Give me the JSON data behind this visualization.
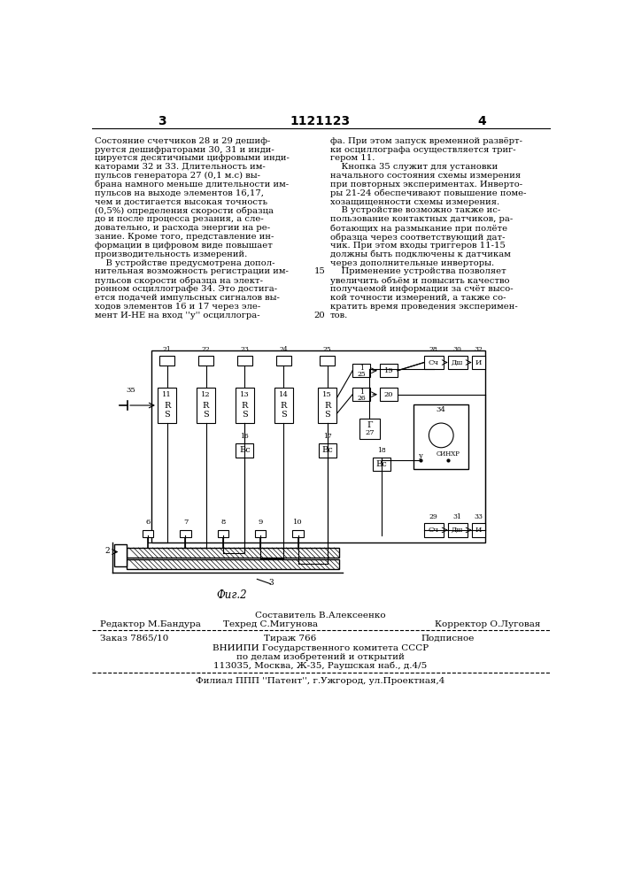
{
  "page_number_left": "3",
  "patent_number": "1121123",
  "page_number_right": "4",
  "left_col_lines": [
    "Состояние счетчиков 28 и 29 дешиф-",
    "руется дешифраторами 30, 31 и инди-",
    "цируется десятичными цифровыми инди-",
    "каторами 32 и 33. Длительность им-",
    "пульсов генератора 27 (0,1 м.с) вы-",
    "брана намного меньше длительности им-",
    "пульсов на выходе элементов 16,17,",
    "чем и достигается высокая точность",
    "(0,5%) определения скорости образца",
    "до и после процесса резания, а сле-",
    "довательно, и расхода энергии на ре-",
    "зание. Кроме того, представление ин-",
    "формации в цифровом виде повышает",
    "производительность измерений.",
    "    В устройстве предусмотрена допол-",
    "нительная возможность регистрации им-",
    "пульсов скорости образца на элект-",
    "ронном осциллографе 34. Это достига-",
    "ется подачей импульсных сигналов вы-",
    "ходов элементов 16 и 17 через эле-",
    "мент И-НЕ на вход ''у'' осциллогра-"
  ],
  "right_col_lines": [
    "фа. При этом запуск временной развёрт-",
    "ки осциллографа осуществляется триг-",
    "гером 11.",
    "    Кнопка 35 служит для установки",
    "начального состояния схемы измерения",
    "при повторных экспериментах. Инверто-",
    "ры 21-24 обеспечивают повышение поме-",
    "хозащищенности схемы измерения.",
    "    В устройстве возможно также ис-",
    "пользование контактных датчиков, ра-",
    "ботающих на размыкание при полёте",
    "образца через соответствующий дат-",
    "чик. При этом входы триггеров 11-15",
    "должны быть подключены к датчикам",
    "через дополнительные инверторы.",
    "    Применение устройства позволяет",
    "увеличить объём и повысить качество",
    "получаемой информации за счёт высо-",
    "кой точности измерений, а также со-",
    "кратить время проведения эксперимен-",
    "тов."
  ],
  "line_margin_numbers": {
    "15": 15,
    "20": 20
  },
  "fig_label": "Фиг.2",
  "footer_sestavitel": "Составитель В.Алексеенко",
  "footer_redaktor": "Редактор М.Бандура",
  "footer_tehred": "Техред С.Мигунова",
  "footer_korrektor": "Корректор О.Луговая",
  "footer_order": "Заказ 7865/10",
  "footer_tirazh": "Тираж 766",
  "footer_podpisnoe": "Подписное",
  "footer_vniiipi": "ВНИИПИ Государственного комитета СССР",
  "footer_vniiipi2": "по делам изобретений и открытий",
  "footer_address": "113035, Москва, Ж-35, Раушская наб., д.4/5",
  "footer_filial": "Филиал ППП ''Патент'', г.Ужгород, ул.Проектная,4",
  "bg_color": "#ffffff",
  "text_color": "#000000"
}
